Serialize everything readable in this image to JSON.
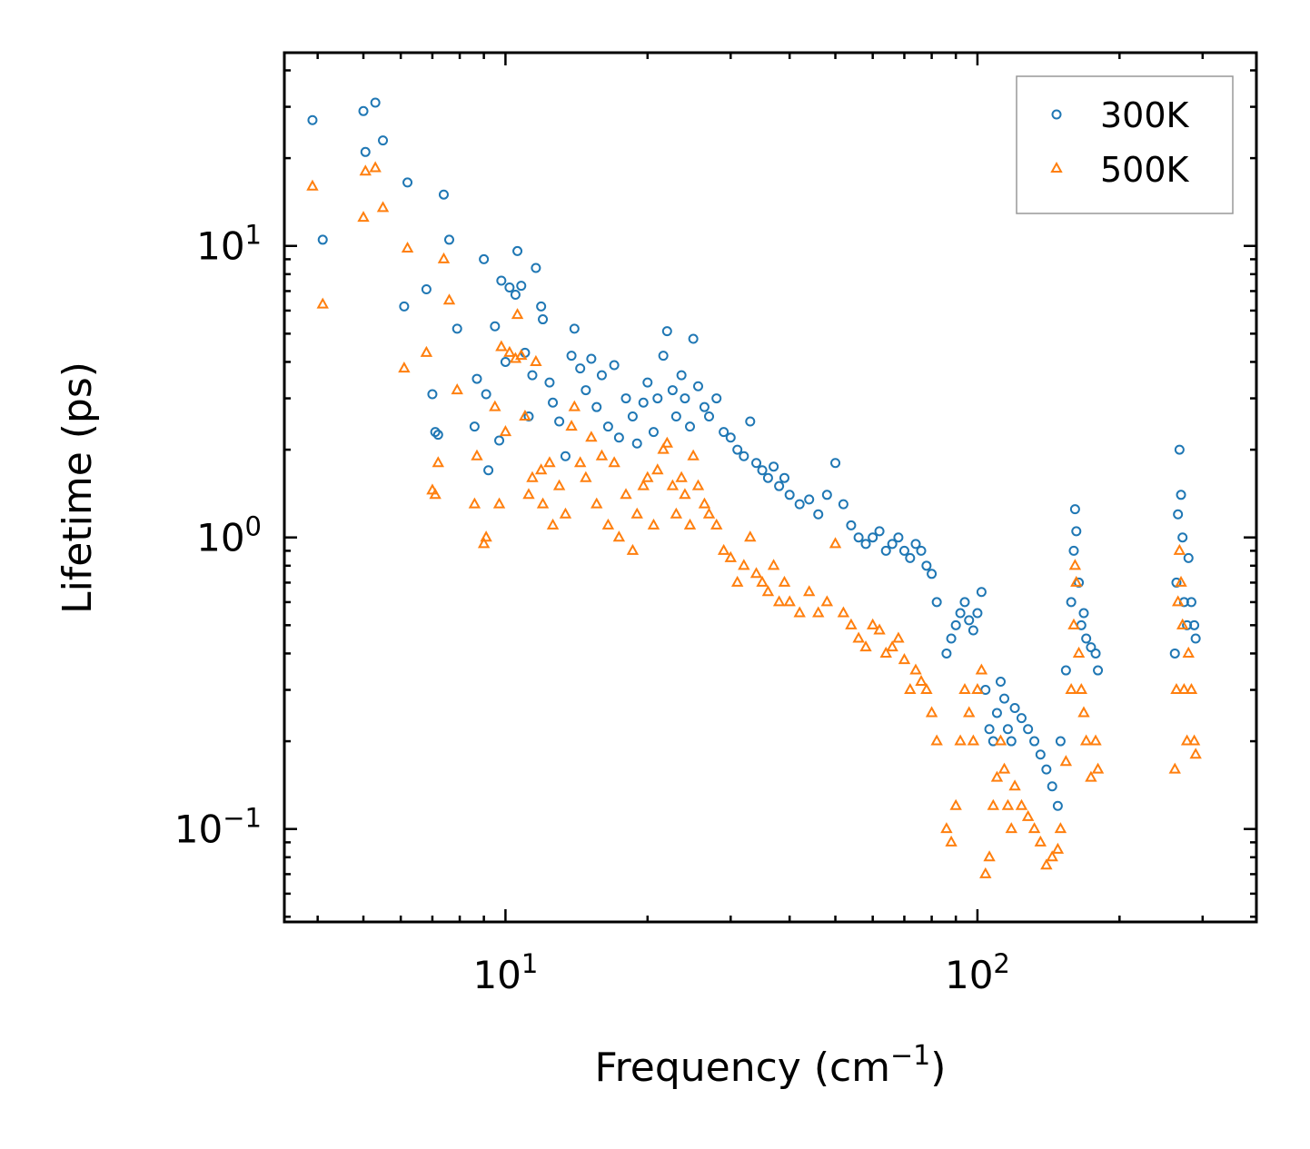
{
  "chart_data": {
    "type": "scatter",
    "title": "",
    "xlabel": {
      "base": "Frequency (cm",
      "sup": "−1",
      "tail": ")"
    },
    "ylabel": "Lifetime (ps)",
    "xscale": "log",
    "yscale": "log",
    "xlim": [
      3.4,
      390
    ],
    "ylim": [
      0.048,
      46
    ],
    "xticks": [
      {
        "value": 10,
        "base": "10",
        "exp": "1"
      },
      {
        "value": 100,
        "base": "10",
        "exp": "2"
      }
    ],
    "yticks": [
      {
        "value": 0.1,
        "base": "10",
        "exp": "−1"
      },
      {
        "value": 1,
        "base": "10",
        "exp": "0"
      },
      {
        "value": 10,
        "base": "10",
        "exp": "1"
      }
    ],
    "legend_position": "top-right",
    "series": [
      {
        "name": "300K",
        "marker": "circle",
        "color": "#1f77b4",
        "points": [
          [
            3.9,
            27
          ],
          [
            4.1,
            10.5
          ],
          [
            5,
            29
          ],
          [
            5.05,
            21
          ],
          [
            5.3,
            31
          ],
          [
            5.5,
            23
          ],
          [
            6.1,
            6.2
          ],
          [
            6.2,
            16.5
          ],
          [
            6.8,
            7.1
          ],
          [
            7,
            3.1
          ],
          [
            7.1,
            2.3
          ],
          [
            7.2,
            2.25
          ],
          [
            7.4,
            15
          ],
          [
            7.6,
            10.5
          ],
          [
            7.9,
            5.2
          ],
          [
            8.6,
            2.4
          ],
          [
            8.7,
            3.5
          ],
          [
            9,
            9
          ],
          [
            9.1,
            3.1
          ],
          [
            9.2,
            1.7
          ],
          [
            9.5,
            5.3
          ],
          [
            9.7,
            2.15
          ],
          [
            9.8,
            7.6
          ],
          [
            10,
            4.0
          ],
          [
            10.2,
            7.2
          ],
          [
            10.5,
            6.8
          ],
          [
            10.6,
            9.6
          ],
          [
            10.8,
            7.3
          ],
          [
            11,
            4.3
          ],
          [
            11.2,
            2.6
          ],
          [
            11.4,
            3.6
          ],
          [
            11.6,
            8.4
          ],
          [
            11.9,
            6.2
          ],
          [
            12,
            5.6
          ],
          [
            12.4,
            3.4
          ],
          [
            12.6,
            2.9
          ],
          [
            13,
            2.5
          ],
          [
            13.4,
            1.9
          ],
          [
            13.8,
            4.2
          ],
          [
            14,
            5.2
          ],
          [
            14.4,
            3.8
          ],
          [
            14.8,
            3.2
          ],
          [
            15.2,
            4.1
          ],
          [
            15.6,
            2.8
          ],
          [
            16,
            3.6
          ],
          [
            16.5,
            2.4
          ],
          [
            17,
            3.9
          ],
          [
            17.4,
            2.2
          ],
          [
            18,
            3.0
          ],
          [
            18.6,
            2.6
          ],
          [
            19,
            2.1
          ],
          [
            19.6,
            2.9
          ],
          [
            20,
            3.4
          ],
          [
            20.6,
            2.3
          ],
          [
            21,
            3.0
          ],
          [
            21.6,
            4.2
          ],
          [
            22,
            5.1
          ],
          [
            22.6,
            3.2
          ],
          [
            23,
            2.6
          ],
          [
            23.6,
            3.6
          ],
          [
            24,
            3.0
          ],
          [
            24.6,
            2.4
          ],
          [
            25,
            4.8
          ],
          [
            25.6,
            3.3
          ],
          [
            26.4,
            2.8
          ],
          [
            27,
            2.6
          ],
          [
            28,
            3.0
          ],
          [
            29,
            2.3
          ],
          [
            30,
            2.2
          ],
          [
            31,
            2.0
          ],
          [
            32,
            1.9
          ],
          [
            33,
            2.5
          ],
          [
            34,
            1.8
          ],
          [
            35,
            1.7
          ],
          [
            36,
            1.6
          ],
          [
            37,
            1.75
          ],
          [
            38,
            1.5
          ],
          [
            39,
            1.6
          ],
          [
            40,
            1.4
          ],
          [
            42,
            1.3
          ],
          [
            44,
            1.35
          ],
          [
            46,
            1.2
          ],
          [
            48,
            1.4
          ],
          [
            50,
            1.8
          ],
          [
            52,
            1.3
          ],
          [
            54,
            1.1
          ],
          [
            56,
            1.0
          ],
          [
            58,
            0.95
          ],
          [
            60,
            1.0
          ],
          [
            62,
            1.05
          ],
          [
            64,
            0.9
          ],
          [
            66,
            0.95
          ],
          [
            68,
            1.0
          ],
          [
            70,
            0.9
          ],
          [
            72,
            0.85
          ],
          [
            74,
            0.95
          ],
          [
            76,
            0.9
          ],
          [
            78,
            0.8
          ],
          [
            80,
            0.75
          ],
          [
            82,
            0.6
          ],
          [
            86,
            0.4
          ],
          [
            88,
            0.45
          ],
          [
            90,
            0.5
          ],
          [
            92,
            0.55
          ],
          [
            94,
            0.6
          ],
          [
            96,
            0.52
          ],
          [
            98,
            0.48
          ],
          [
            100,
            0.55
          ],
          [
            102,
            0.65
          ],
          [
            104,
            0.3
          ],
          [
            106,
            0.22
          ],
          [
            108,
            0.2
          ],
          [
            110,
            0.25
          ],
          [
            112,
            0.32
          ],
          [
            114,
            0.28
          ],
          [
            116,
            0.22
          ],
          [
            118,
            0.2
          ],
          [
            120,
            0.26
          ],
          [
            124,
            0.24
          ],
          [
            128,
            0.22
          ],
          [
            132,
            0.2
          ],
          [
            136,
            0.18
          ],
          [
            140,
            0.16
          ],
          [
            144,
            0.14
          ],
          [
            148,
            0.12
          ],
          [
            150,
            0.2
          ],
          [
            154,
            0.35
          ],
          [
            158,
            0.6
          ],
          [
            160,
            0.9
          ],
          [
            161,
            1.25
          ],
          [
            162,
            1.05
          ],
          [
            164,
            0.7
          ],
          [
            166,
            0.5
          ],
          [
            168,
            0.55
          ],
          [
            170,
            0.45
          ],
          [
            174,
            0.42
          ],
          [
            178,
            0.4
          ],
          [
            180,
            0.35
          ],
          [
            262,
            0.4
          ],
          [
            264,
            0.7
          ],
          [
            266,
            1.2
          ],
          [
            268,
            2.0
          ],
          [
            270,
            1.4
          ],
          [
            272,
            1.0
          ],
          [
            274,
            0.6
          ],
          [
            278,
            0.5
          ],
          [
            280,
            0.85
          ],
          [
            284,
            0.6
          ],
          [
            288,
            0.5
          ],
          [
            290,
            0.45
          ]
        ]
      },
      {
        "name": "500K",
        "marker": "triangle",
        "color": "#ff7f0e",
        "points": [
          [
            3.9,
            16
          ],
          [
            4.1,
            6.3
          ],
          [
            5,
            12.5
          ],
          [
            5.05,
            18
          ],
          [
            5.3,
            18.5
          ],
          [
            5.5,
            13.5
          ],
          [
            6.1,
            3.8
          ],
          [
            6.2,
            9.8
          ],
          [
            6.8,
            4.3
          ],
          [
            7,
            1.45
          ],
          [
            7.1,
            1.4
          ],
          [
            7.2,
            1.8
          ],
          [
            7.4,
            9.0
          ],
          [
            7.6,
            6.5
          ],
          [
            7.9,
            3.2
          ],
          [
            8.6,
            1.3
          ],
          [
            8.7,
            1.9
          ],
          [
            9,
            0.95
          ],
          [
            9.1,
            1.0
          ],
          [
            9.5,
            2.8
          ],
          [
            9.7,
            1.3
          ],
          [
            9.8,
            4.5
          ],
          [
            10,
            2.3
          ],
          [
            10.2,
            4.3
          ],
          [
            10.5,
            4.1
          ],
          [
            10.6,
            5.8
          ],
          [
            10.8,
            4.2
          ],
          [
            11,
            2.6
          ],
          [
            11.2,
            1.4
          ],
          [
            11.4,
            1.6
          ],
          [
            11.6,
            4.0
          ],
          [
            11.9,
            1.7
          ],
          [
            12,
            1.3
          ],
          [
            12.4,
            1.8
          ],
          [
            12.6,
            1.1
          ],
          [
            13,
            1.5
          ],
          [
            13.4,
            1.2
          ],
          [
            13.8,
            2.4
          ],
          [
            14,
            2.8
          ],
          [
            14.4,
            1.8
          ],
          [
            14.8,
            1.6
          ],
          [
            15.2,
            2.2
          ],
          [
            15.6,
            1.3
          ],
          [
            16,
            1.9
          ],
          [
            16.5,
            1.1
          ],
          [
            17,
            1.8
          ],
          [
            17.4,
            1.0
          ],
          [
            18,
            1.4
          ],
          [
            18.6,
            0.9
          ],
          [
            19,
            1.2
          ],
          [
            19.6,
            1.5
          ],
          [
            20,
            1.6
          ],
          [
            20.6,
            1.1
          ],
          [
            21,
            1.7
          ],
          [
            21.6,
            2.0
          ],
          [
            22,
            2.1
          ],
          [
            22.6,
            1.5
          ],
          [
            23,
            1.2
          ],
          [
            23.6,
            1.6
          ],
          [
            24,
            1.4
          ],
          [
            24.6,
            1.1
          ],
          [
            25,
            1.9
          ],
          [
            25.6,
            1.5
          ],
          [
            26.4,
            1.3
          ],
          [
            27,
            1.2
          ],
          [
            28,
            1.1
          ],
          [
            29,
            0.9
          ],
          [
            30,
            0.85
          ],
          [
            31,
            0.7
          ],
          [
            32,
            0.8
          ],
          [
            33,
            1.0
          ],
          [
            34,
            0.75
          ],
          [
            35,
            0.7
          ],
          [
            36,
            0.65
          ],
          [
            37,
            0.8
          ],
          [
            38,
            0.6
          ],
          [
            39,
            0.7
          ],
          [
            40,
            0.6
          ],
          [
            42,
            0.55
          ],
          [
            44,
            0.65
          ],
          [
            46,
            0.55
          ],
          [
            48,
            0.6
          ],
          [
            50,
            0.95
          ],
          [
            52,
            0.55
          ],
          [
            54,
            0.5
          ],
          [
            56,
            0.45
          ],
          [
            58,
            0.42
          ],
          [
            60,
            0.5
          ],
          [
            62,
            0.48
          ],
          [
            64,
            0.4
          ],
          [
            66,
            0.42
          ],
          [
            68,
            0.45
          ],
          [
            70,
            0.38
          ],
          [
            72,
            0.3
          ],
          [
            74,
            0.35
          ],
          [
            76,
            0.32
          ],
          [
            78,
            0.3
          ],
          [
            80,
            0.25
          ],
          [
            82,
            0.2
          ],
          [
            86,
            0.1
          ],
          [
            88,
            0.09
          ],
          [
            90,
            0.12
          ],
          [
            92,
            0.2
          ],
          [
            94,
            0.3
          ],
          [
            96,
            0.25
          ],
          [
            98,
            0.2
          ],
          [
            100,
            0.3
          ],
          [
            102,
            0.35
          ],
          [
            104,
            0.07
          ],
          [
            106,
            0.08
          ],
          [
            108,
            0.12
          ],
          [
            110,
            0.15
          ],
          [
            112,
            0.2
          ],
          [
            114,
            0.16
          ],
          [
            116,
            0.12
          ],
          [
            118,
            0.1
          ],
          [
            120,
            0.14
          ],
          [
            124,
            0.12
          ],
          [
            128,
            0.11
          ],
          [
            132,
            0.1
          ],
          [
            136,
            0.09
          ],
          [
            140,
            0.075
          ],
          [
            144,
            0.08
          ],
          [
            148,
            0.085
          ],
          [
            150,
            0.1
          ],
          [
            154,
            0.17
          ],
          [
            158,
            0.3
          ],
          [
            160,
            0.5
          ],
          [
            161,
            0.8
          ],
          [
            162,
            0.7
          ],
          [
            164,
            0.4
          ],
          [
            166,
            0.3
          ],
          [
            168,
            0.25
          ],
          [
            170,
            0.2
          ],
          [
            174,
            0.15
          ],
          [
            178,
            0.2
          ],
          [
            180,
            0.16
          ],
          [
            262,
            0.16
          ],
          [
            264,
            0.3
          ],
          [
            266,
            0.6
          ],
          [
            268,
            0.9
          ],
          [
            270,
            0.7
          ],
          [
            272,
            0.5
          ],
          [
            274,
            0.3
          ],
          [
            278,
            0.2
          ],
          [
            280,
            0.4
          ],
          [
            284,
            0.3
          ],
          [
            288,
            0.2
          ],
          [
            290,
            0.18
          ]
        ]
      }
    ]
  }
}
